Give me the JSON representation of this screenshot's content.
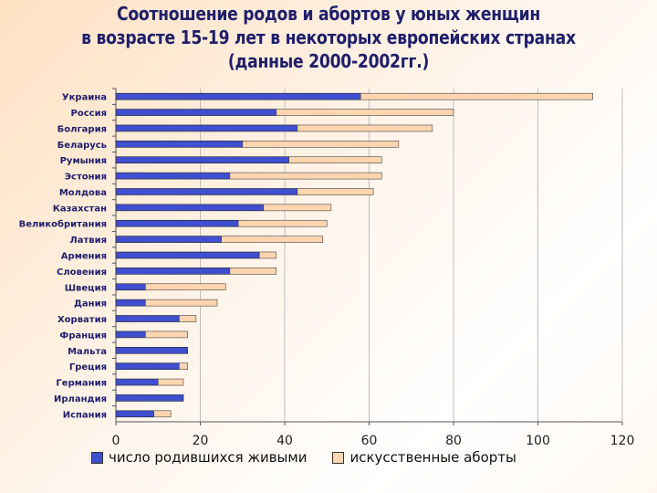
{
  "title": {
    "line1": "Соотношение родов и абортов у юных женщин",
    "line2": "в возрасте 15-19 лет в некоторых европейских странах",
    "line3": "(данные 2000-2002гг.)"
  },
  "colors": {
    "series1": "#3f4fcf",
    "series2": "#ffd5b0",
    "title": "#1f1f6b"
  },
  "chart_data": {
    "type": "bar",
    "orientation": "horizontal",
    "stacked": true,
    "categories": [
      "Украина",
      "Россия",
      "Болгария",
      "Беларусь",
      "Румыния",
      "Эстония",
      "Молдова",
      "Казахстан",
      "Великобритания",
      "Латвия",
      "Армения",
      "Словения",
      "Швеция",
      "Дания",
      "Хорватия",
      "Франция",
      "Мальта",
      "Греция",
      "Германия",
      "Ирландия",
      "Испания"
    ],
    "series": [
      {
        "name": "число родившихся живыми",
        "values": [
          58,
          38,
          43,
          30,
          41,
          27,
          43,
          35,
          29,
          25,
          34,
          27,
          7,
          7,
          15,
          7,
          17,
          15,
          10,
          16,
          9
        ]
      },
      {
        "name": "искусственные аборты",
        "values": [
          55,
          42,
          32,
          37,
          22,
          36,
          18,
          16,
          21,
          24,
          4,
          11,
          19,
          17,
          4,
          10,
          0,
          2,
          6,
          0,
          4
        ]
      }
    ],
    "xlim": [
      0,
      120
    ],
    "xticks": [
      0,
      20,
      40,
      60,
      80,
      100,
      120
    ],
    "grid": true,
    "legend_position": "bottom"
  }
}
